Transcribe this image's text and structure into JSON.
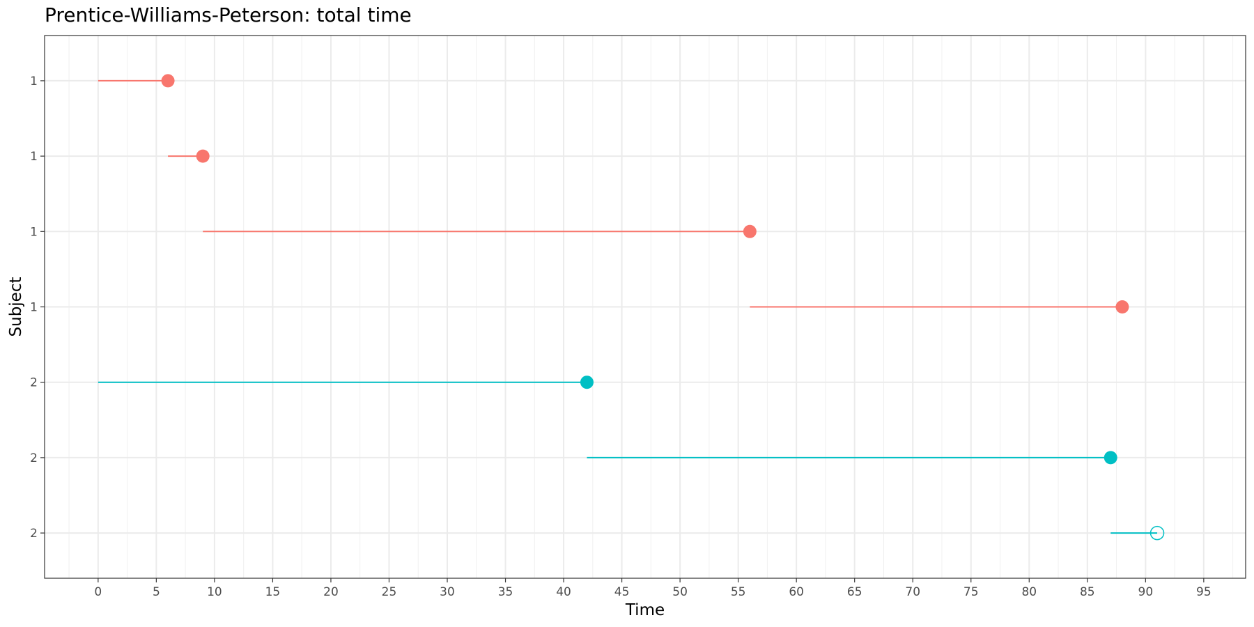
{
  "chart_data": {
    "type": "segment",
    "title": "Prentice-Williams-Peterson: total time",
    "xlabel": "Time",
    "ylabel": "Subject",
    "xlim": [
      -4.6,
      98.6
    ],
    "x_ticks": [
      0,
      5,
      10,
      15,
      20,
      25,
      30,
      35,
      40,
      45,
      50,
      55,
      60,
      65,
      70,
      75,
      80,
      85,
      90,
      95
    ],
    "grid": true,
    "legend": "none",
    "colors": {
      "1": "#F8766D",
      "2": "#00BFC4"
    },
    "segments": [
      {
        "subject": "1",
        "start": 0,
        "stop": 6,
        "event": 1
      },
      {
        "subject": "1",
        "start": 6,
        "stop": 9,
        "event": 1
      },
      {
        "subject": "1",
        "start": 9,
        "stop": 56,
        "event": 1
      },
      {
        "subject": "1",
        "start": 56,
        "stop": 88,
        "event": 1
      },
      {
        "subject": "2",
        "start": 0,
        "stop": 42,
        "event": 1
      },
      {
        "subject": "2",
        "start": 42,
        "stop": 87,
        "event": 1
      },
      {
        "subject": "2",
        "start": 87,
        "stop": 91,
        "event": 0
      }
    ]
  }
}
